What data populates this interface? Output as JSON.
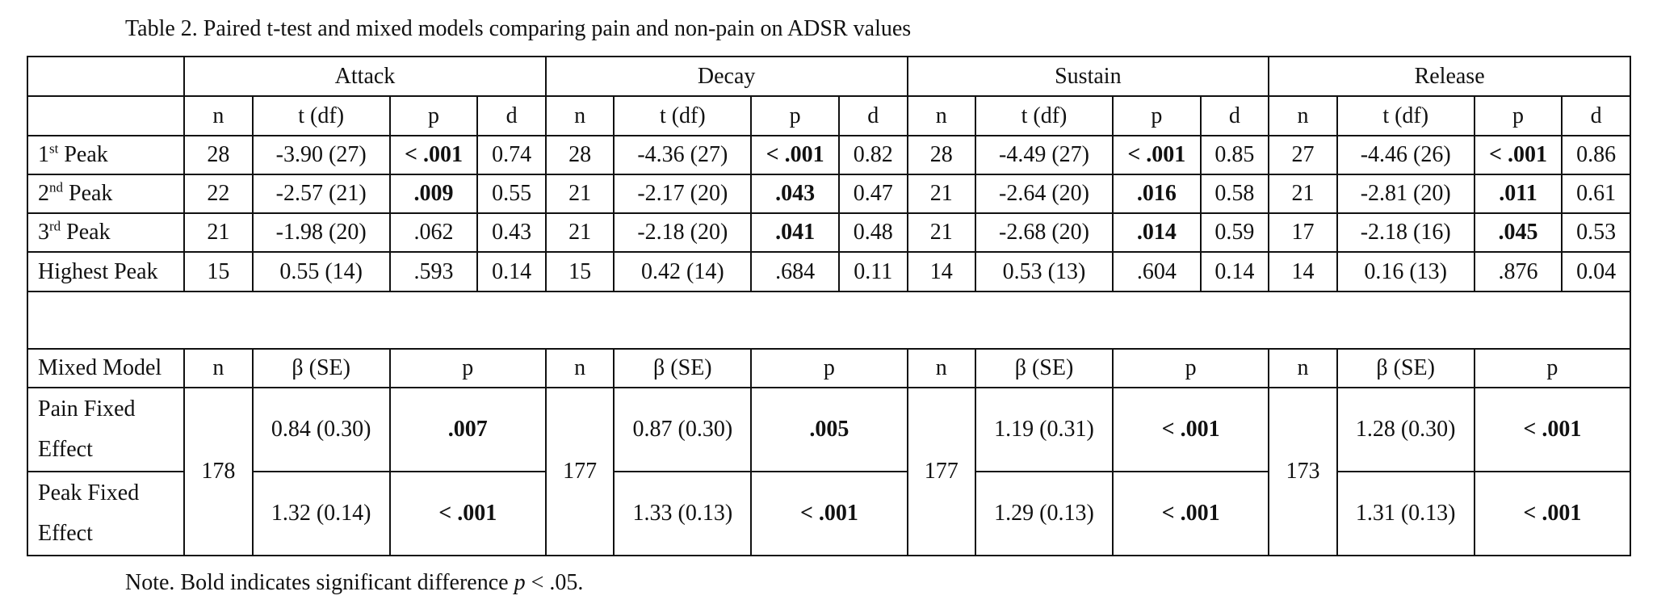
{
  "caption": "Table 2. Paired t-test and mixed models comparing pain and non-pain on ADSR values",
  "note": {
    "prefix": "Note. Bold indicates significant difference ",
    "italic": "p",
    "suffix": " < .05."
  },
  "groups": [
    "Attack",
    "Decay",
    "Sustain",
    "Release"
  ],
  "ttest_headers": [
    "n",
    "t (df)",
    "p",
    "d"
  ],
  "ttest_rows": [
    {
      "label": "1",
      "sup": "st",
      "suffix": " Peak",
      "cells": [
        {
          "n": "28",
          "t": "-3.90 (27)",
          "p": "< .001",
          "sig": true,
          "d": "0.74"
        },
        {
          "n": "28",
          "t": "-4.36 (27)",
          "p": "< .001",
          "sig": true,
          "d": "0.82"
        },
        {
          "n": "28",
          "t": "-4.49 (27)",
          "p": "< .001",
          "sig": true,
          "d": "0.85"
        },
        {
          "n": "27",
          "t": "-4.46 (26)",
          "p": "< .001",
          "sig": true,
          "d": "0.86"
        }
      ]
    },
    {
      "label": "2",
      "sup": "nd",
      "suffix": " Peak",
      "cells": [
        {
          "n": "22",
          "t": "-2.57 (21)",
          "p": ".009",
          "sig": true,
          "d": "0.55"
        },
        {
          "n": "21",
          "t": "-2.17 (20)",
          "p": ".043",
          "sig": true,
          "d": "0.47"
        },
        {
          "n": "21",
          "t": "-2.64 (20)",
          "p": ".016",
          "sig": true,
          "d": "0.58"
        },
        {
          "n": "21",
          "t": "-2.81 (20)",
          "p": ".011",
          "sig": true,
          "d": "0.61"
        }
      ]
    },
    {
      "label": "3",
      "sup": "rd",
      "suffix": " Peak",
      "cells": [
        {
          "n": "21",
          "t": "-1.98 (20)",
          "p": ".062",
          "sig": false,
          "d": "0.43"
        },
        {
          "n": "21",
          "t": "-2.18 (20)",
          "p": ".041",
          "sig": true,
          "d": "0.48"
        },
        {
          "n": "21",
          "t": "-2.68 (20)",
          "p": ".014",
          "sig": true,
          "d": "0.59"
        },
        {
          "n": "17",
          "t": "-2.18 (16)",
          "p": ".045",
          "sig": true,
          "d": "0.53"
        }
      ]
    },
    {
      "label": "Highest Peak",
      "sup": "",
      "suffix": "",
      "cells": [
        {
          "n": "15",
          "t": "0.55 (14)",
          "p": ".593",
          "sig": false,
          "d": "0.14"
        },
        {
          "n": "15",
          "t": "0.42 (14)",
          "p": ".684",
          "sig": false,
          "d": "0.11"
        },
        {
          "n": "14",
          "t": "0.53 (13)",
          "p": ".604",
          "sig": false,
          "d": "0.14"
        },
        {
          "n": "14",
          "t": "0.16 (13)",
          "p": ".876",
          "sig": false,
          "d": "0.04"
        }
      ]
    }
  ],
  "mixed": {
    "label": "Mixed Model",
    "headers": [
      "n",
      "β (SE)",
      "p"
    ],
    "groups": [
      {
        "n": "178",
        "rows": [
          {
            "beta": "0.84 (0.30)",
            "p": ".007",
            "sig": true
          },
          {
            "beta": "1.32 (0.14)",
            "p": "< .001",
            "sig": true
          }
        ]
      },
      {
        "n": "177",
        "rows": [
          {
            "beta": "0.87 (0.30)",
            "p": ".005",
            "sig": true
          },
          {
            "beta": "1.33 (0.13)",
            "p": "< .001",
            "sig": true
          }
        ]
      },
      {
        "n": "177",
        "rows": [
          {
            "beta": "1.19 (0.31)",
            "p": "< .001",
            "sig": true
          },
          {
            "beta": "1.29 (0.13)",
            "p": "< .001",
            "sig": true
          }
        ]
      },
      {
        "n": "173",
        "rows": [
          {
            "beta": "1.28 (0.30)",
            "p": "< .001",
            "sig": true
          },
          {
            "beta": "1.31 (0.13)",
            "p": "< .001",
            "sig": true
          }
        ]
      }
    ],
    "effects": [
      "Pain Fixed Effect",
      "Peak Fixed Effect"
    ]
  }
}
